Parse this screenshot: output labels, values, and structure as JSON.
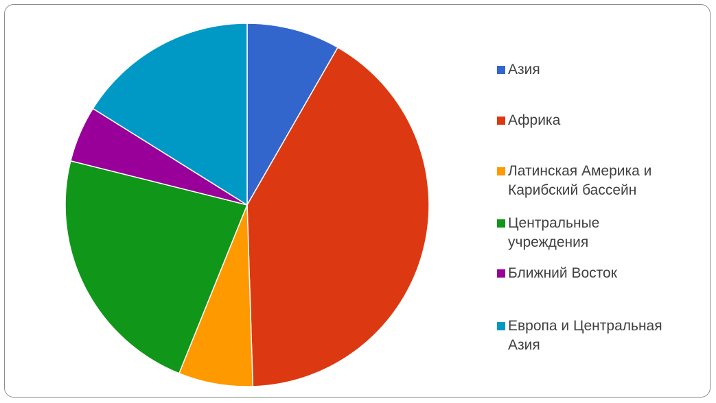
{
  "chart_data": {
    "type": "pie",
    "start_angle_deg": 0,
    "direction": "clockwise",
    "legend_position": "right",
    "slices": [
      {
        "label": "Азия",
        "value": 8.3,
        "color": "#3366cc"
      },
      {
        "label": "Африка",
        "value": 41.2,
        "color": "#dc3912"
      },
      {
        "label": "Латинская Америка и Карибский бассейн",
        "value": 6.6,
        "color": "#ff9900"
      },
      {
        "label": "Центральные учреждения",
        "value": 22.8,
        "color": "#109618"
      },
      {
        "label": "Ближний Восток",
        "value": 5.0,
        "color": "#990099"
      },
      {
        "label": "Европа и Центральная Азия",
        "value": 16.1,
        "color": "#0099c6"
      }
    ]
  }
}
